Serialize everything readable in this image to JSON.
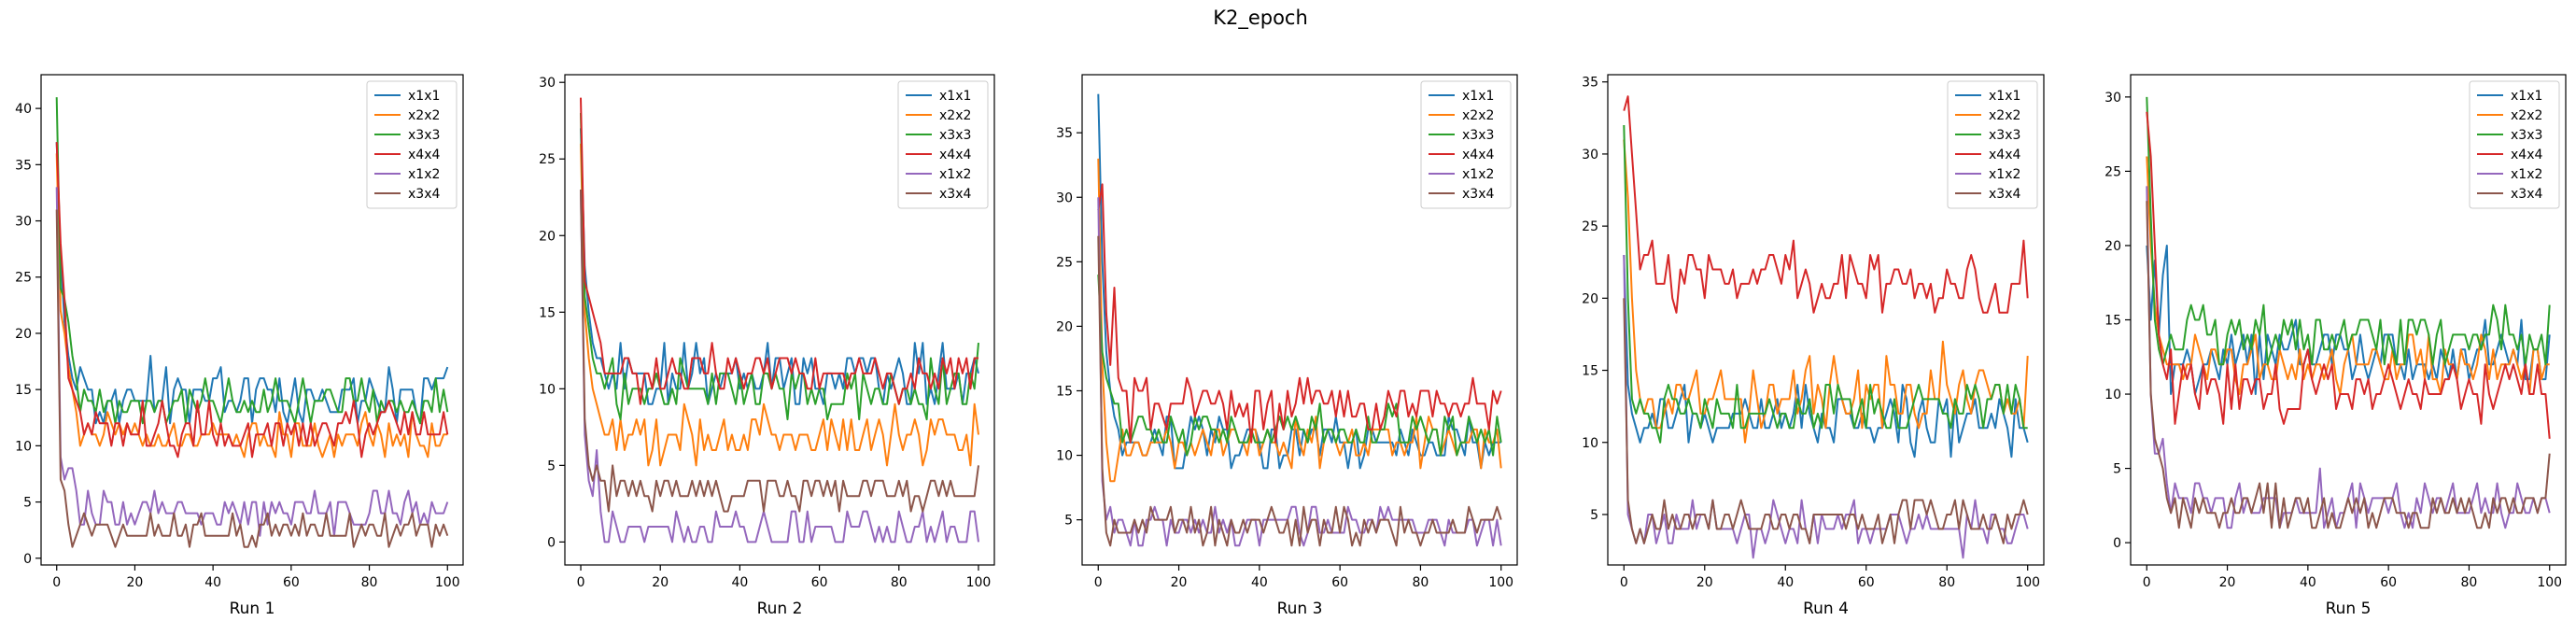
{
  "figure": {
    "suptitle": "K2_epoch"
  },
  "style": {
    "series_colors": {
      "x1x1": "#1f77b4",
      "x2x2": "#ff7f0e",
      "x3x3": "#2ca02c",
      "x4x4": "#d62728",
      "x1x2": "#9467bd",
      "x3x4": "#8c564b"
    }
  },
  "chart_data": [
    {
      "type": "line",
      "xlabel": "Run 1",
      "xlim": [
        -4,
        104
      ],
      "ylim": [
        -0.6,
        43
      ],
      "xticks": [
        0,
        20,
        40,
        60,
        80,
        100
      ],
      "yticks": [
        0,
        5,
        10,
        15,
        20,
        25,
        30,
        35,
        40
      ],
      "legend": "top-right",
      "series": [
        {
          "name": "x1x1",
          "start": 37,
          "end": 17,
          "level": 14.5,
          "noise": 1.8,
          "early": [
            37,
            27,
            21,
            18,
            16,
            15
          ]
        },
        {
          "name": "x2x2",
          "start": 36,
          "end": 11,
          "level": 11,
          "noise": 1.2,
          "early": [
            36,
            22,
            20,
            17,
            15,
            13
          ]
        },
        {
          "name": "x3x3",
          "start": 41,
          "end": 13,
          "level": 14,
          "noise": 1.3,
          "early": [
            41,
            24,
            23,
            21,
            18,
            16
          ]
        },
        {
          "name": "x4x4",
          "start": 37,
          "end": 11,
          "level": 11.5,
          "noise": 1.4,
          "early": [
            37,
            28,
            23,
            16,
            15,
            14
          ]
        },
        {
          "name": "x1x2",
          "start": 33,
          "end": 5,
          "level": 4.2,
          "noise": 1.1,
          "early": [
            33,
            9,
            7,
            8,
            8,
            6
          ]
        },
        {
          "name": "x3x4",
          "start": 31,
          "end": 2,
          "level": 2.5,
          "noise": 1.0,
          "early": [
            31,
            7,
            6,
            3,
            1,
            2
          ]
        }
      ]
    },
    {
      "type": "line",
      "xlabel": "Run 2",
      "xlim": [
        -4,
        104
      ],
      "ylim": [
        -1.5,
        30.5
      ],
      "xticks": [
        0,
        20,
        40,
        60,
        80,
        100
      ],
      "yticks": [
        0,
        5,
        10,
        15,
        20,
        25,
        30
      ],
      "legend": "top-right",
      "series": [
        {
          "name": "x1x1",
          "start": 27,
          "end": 11,
          "level": 11,
          "noise": 1.3,
          "early": [
            27,
            18,
            15,
            13,
            12,
            12
          ]
        },
        {
          "name": "x2x2",
          "start": 26,
          "end": 7,
          "level": 7,
          "noise": 1.2,
          "early": [
            26,
            15,
            12,
            10,
            9,
            8
          ]
        },
        {
          "name": "x3x3",
          "start": 28,
          "end": 13,
          "level": 10,
          "noise": 1.0,
          "early": [
            28,
            16,
            14,
            12,
            11,
            11
          ]
        },
        {
          "name": "x4x4",
          "start": 29,
          "end": 12,
          "level": 11,
          "noise": 1.1,
          "early": [
            29,
            17,
            16,
            15,
            14,
            13
          ]
        },
        {
          "name": "x1x2",
          "start": 23,
          "end": 0,
          "level": 0.8,
          "noise": 0.7,
          "early": [
            23,
            7,
            4,
            3,
            6,
            2
          ]
        },
        {
          "name": "x3x4",
          "start": 23,
          "end": 5,
          "level": 3.4,
          "noise": 0.8,
          "early": [
            23,
            8,
            5,
            4,
            5,
            4
          ]
        }
      ]
    },
    {
      "type": "line",
      "xlabel": "Run 3",
      "xlim": [
        -4,
        104
      ],
      "ylim": [
        1.5,
        39.5
      ],
      "xticks": [
        0,
        20,
        40,
        60,
        80,
        100
      ],
      "yticks": [
        5,
        10,
        15,
        20,
        25,
        30,
        35
      ],
      "legend": "top-right",
      "series": [
        {
          "name": "x1x1",
          "start": 38,
          "end": 11,
          "level": 11,
          "noise": 1.3,
          "early": [
            38,
            25,
            18,
            15,
            13,
            12
          ]
        },
        {
          "name": "x2x2",
          "start": 33,
          "end": 9,
          "level": 11,
          "noise": 1.1,
          "early": [
            33,
            17,
            11,
            8,
            8,
            10
          ]
        },
        {
          "name": "x3x3",
          "start": 24,
          "end": 11,
          "level": 12,
          "noise": 1.0,
          "early": [
            24,
            18,
            16,
            15,
            14,
            14
          ]
        },
        {
          "name": "x4x4",
          "start": 29,
          "end": 15,
          "level": 14,
          "noise": 1.5,
          "early": [
            29,
            31,
            21,
            17,
            23,
            16
          ]
        },
        {
          "name": "x1x2",
          "start": 30,
          "end": 3,
          "level": 4.5,
          "noise": 1.0,
          "early": [
            30,
            8,
            5,
            6,
            4,
            5
          ]
        },
        {
          "name": "x3x4",
          "start": 27,
          "end": 5,
          "level": 4.5,
          "noise": 0.9,
          "early": [
            27,
            9,
            4,
            3,
            5,
            4
          ]
        }
      ]
    },
    {
      "type": "line",
      "xlabel": "Run 4",
      "xlim": [
        -4,
        104
      ],
      "ylim": [
        1.5,
        35.5
      ],
      "xticks": [
        0,
        20,
        40,
        60,
        80,
        100
      ],
      "yticks": [
        5,
        10,
        15,
        20,
        25,
        30,
        35
      ],
      "legend": "top-right",
      "series": [
        {
          "name": "x1x1",
          "start": 23,
          "end": 10,
          "level": 11.5,
          "noise": 1.4,
          "early": [
            23,
            14,
            12,
            11,
            10,
            11
          ]
        },
        {
          "name": "x2x2",
          "start": 31,
          "end": 16,
          "level": 13.5,
          "noise": 1.6,
          "early": [
            31,
            27,
            20,
            15,
            13,
            12
          ]
        },
        {
          "name": "x3x3",
          "start": 32,
          "end": 11,
          "level": 12.5,
          "noise": 1.3,
          "early": [
            32,
            20,
            13,
            12,
            13,
            12
          ]
        },
        {
          "name": "x4x4",
          "start": 33,
          "end": 20,
          "level": 21,
          "noise": 1.5,
          "early": [
            33,
            34,
            30,
            26,
            22,
            23
          ]
        },
        {
          "name": "x1x2",
          "start": 23,
          "end": 4,
          "level": 4.2,
          "noise": 1.0,
          "early": [
            23,
            5,
            4,
            3,
            4,
            3
          ]
        },
        {
          "name": "x3x4",
          "start": 20,
          "end": 5,
          "level": 4.8,
          "noise": 0.9,
          "early": [
            20,
            6,
            4,
            3,
            4,
            3
          ]
        }
      ]
    },
    {
      "type": "line",
      "xlabel": "Run 5",
      "xlim": [
        -4,
        104
      ],
      "ylim": [
        -1.5,
        31.5
      ],
      "xticks": [
        0,
        20,
        40,
        60,
        80,
        100
      ],
      "yticks": [
        0,
        5,
        10,
        15,
        20,
        25,
        30
      ],
      "legend": "top-right",
      "series": [
        {
          "name": "x1x1",
          "start": 20,
          "end": 14,
          "level": 12.5,
          "noise": 1.3,
          "early": [
            20,
            15,
            19,
            14,
            18,
            20
          ]
        },
        {
          "name": "x2x2",
          "start": 26,
          "end": 12,
          "level": 12,
          "noise": 1.1,
          "early": [
            26,
            20,
            16,
            14,
            13,
            12
          ]
        },
        {
          "name": "x3x3",
          "start": 30,
          "end": 16,
          "level": 14,
          "noise": 1.2,
          "early": [
            30,
            22,
            15,
            13,
            12,
            13
          ]
        },
        {
          "name": "x4x4",
          "start": 29,
          "end": 7,
          "level": 10.5,
          "noise": 1.3,
          "early": [
            29,
            26,
            20,
            14,
            12,
            11
          ]
        },
        {
          "name": "x1x2",
          "start": 24,
          "end": 2,
          "level": 2.6,
          "noise": 1.1,
          "early": [
            24,
            10,
            6,
            6,
            7,
            4
          ]
        },
        {
          "name": "x3x4",
          "start": 23,
          "end": 6,
          "level": 2.3,
          "noise": 0.9,
          "early": [
            23,
            10,
            7,
            6,
            5,
            3
          ]
        }
      ]
    }
  ]
}
